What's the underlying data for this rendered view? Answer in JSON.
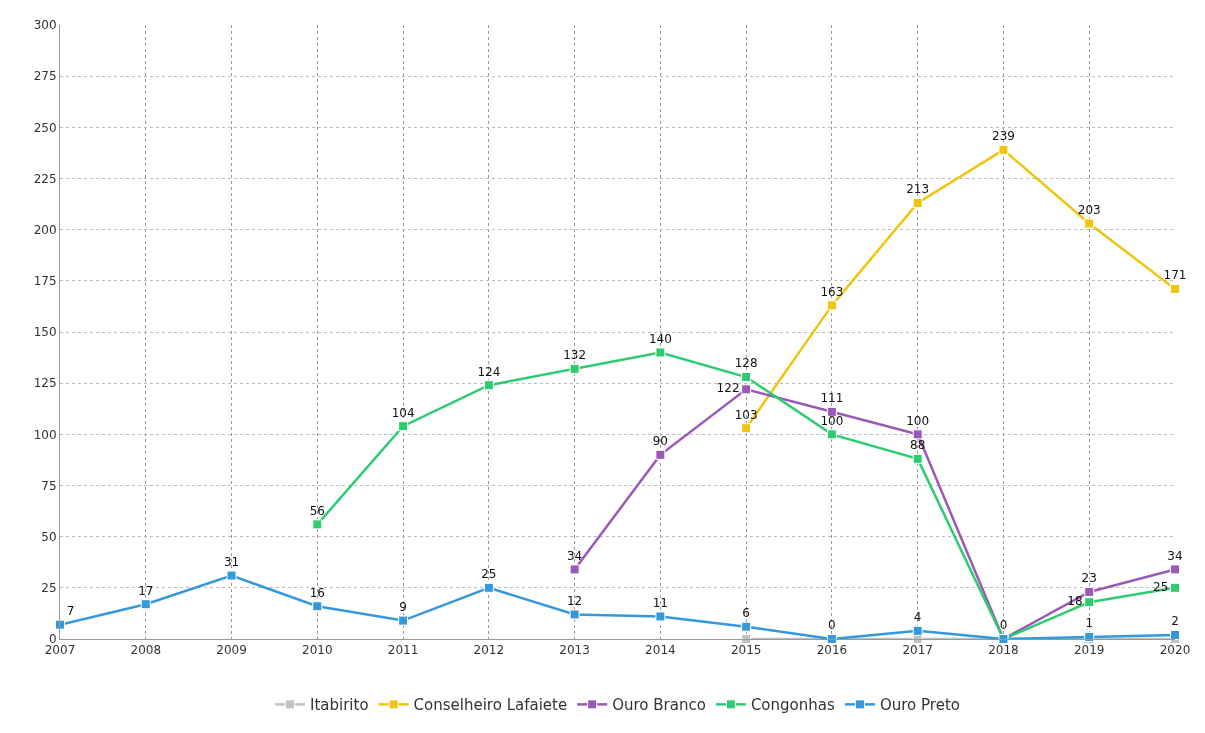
{
  "chart_data": {
    "type": "line",
    "marker": "square",
    "line_style": "solid",
    "data_labels": true,
    "grid": true,
    "legend": "bottom",
    "xlim": [
      2007,
      2020
    ],
    "xticks": [
      2007,
      2008,
      2009,
      2010,
      2011,
      2012,
      2013,
      2014,
      2015,
      2016,
      2017,
      2018,
      2019,
      2020
    ],
    "ylim": [
      0,
      300
    ],
    "yticks": [
      0,
      25,
      50,
      75,
      100,
      125,
      150,
      175,
      200,
      225,
      250,
      275,
      300
    ],
    "series": [
      {
        "name": "Itabirito",
        "color": "#bdc3c7",
        "x": [
          2015,
          2016,
          2017,
          2018,
          2019,
          2020
        ],
        "values": [
          0,
          0,
          0,
          0,
          0,
          0
        ],
        "value_labels": [
          null,
          null,
          null,
          null,
          null,
          null
        ]
      },
      {
        "name": "Conselheiro Lafaiete",
        "color": "#f1c40f",
        "x": [
          2015,
          2016,
          2017,
          2018,
          2019,
          2020
        ],
        "values": [
          103,
          163,
          213,
          239,
          203,
          171
        ]
      },
      {
        "name": "Ouro Branco",
        "color": "#9b59b6",
        "x": [
          2013,
          2014,
          2015,
          2016,
          2017,
          2018,
          2019,
          2020
        ],
        "values": [
          34,
          90,
          122,
          111,
          100,
          0,
          23,
          34
        ],
        "value_labels": [
          "34",
          "90",
          "122",
          "111",
          "100",
          null,
          "23",
          "34"
        ]
      },
      {
        "name": "Congonhas",
        "color": "#2ecc71",
        "x": [
          2010,
          2011,
          2012,
          2013,
          2014,
          2015,
          2016,
          2017,
          2018,
          2019,
          2020
        ],
        "values": [
          56,
          104,
          124,
          132,
          140,
          128,
          100,
          88,
          0,
          18,
          25
        ],
        "value_labels": [
          "56",
          "104",
          "124",
          "132",
          "140",
          "128",
          "100",
          "88",
          null,
          "18",
          "25"
        ]
      },
      {
        "name": "Ouro Preto",
        "color": "#3498db",
        "x": [
          2007,
          2008,
          2009,
          2010,
          2011,
          2012,
          2013,
          2014,
          2015,
          2016,
          2017,
          2018,
          2019,
          2020
        ],
        "values": [
          7,
          17,
          31,
          16,
          9,
          25,
          12,
          11,
          6,
          0,
          4,
          0,
          1,
          2
        ]
      }
    ]
  }
}
